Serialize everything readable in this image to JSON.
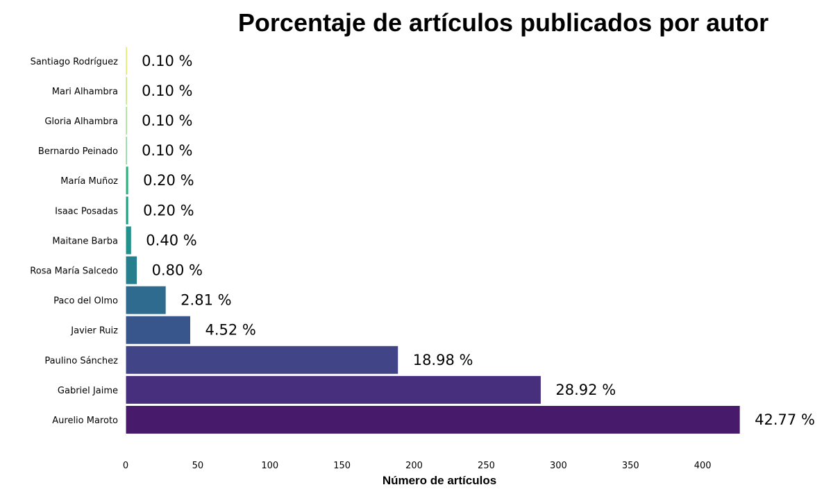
{
  "chart_data": {
    "type": "bar",
    "orientation": "horizontal",
    "title": "Porcentaje de artículos publicados por autor",
    "xlabel": "Número de artículos",
    "ylabel": "",
    "xlim": [
      0,
      440
    ],
    "xticks": [
      0,
      50,
      100,
      150,
      200,
      250,
      300,
      350,
      400
    ],
    "grid": false,
    "categories": [
      "Aurelio Maroto",
      "Gabriel Jaime",
      "Paulino Sánchez",
      "Javier Ruiz",
      "Paco del Olmo",
      "Rosa María Salcedo",
      "Maitane Barba",
      "Isaac Posadas",
      "María Muñoz",
      "Bernardo Peinado",
      "Gloria Alhambra",
      "Mari Alhambra",
      "Santiago Rodríguez"
    ],
    "values": [
      426,
      288,
      189,
      45,
      28,
      8,
      4,
      2,
      2,
      1,
      1,
      1,
      1
    ],
    "labels": [
      "42.77 %",
      "28.92 %",
      "18.98 %",
      "4.52 %",
      "2.81 %",
      "0.80 %",
      "0.40 %",
      "0.20 %",
      "0.20 %",
      "0.10 %",
      "0.10 %",
      "0.10 %",
      "0.10 %"
    ],
    "colors": [
      "#481a6c",
      "#472f7d",
      "#414487",
      "#39568c",
      "#2f6b8e",
      "#277f8e",
      "#21918c",
      "#1fa187",
      "#2db27d",
      "#4ac16d",
      "#73d056",
      "#a0da39",
      "#d0e11c"
    ]
  }
}
